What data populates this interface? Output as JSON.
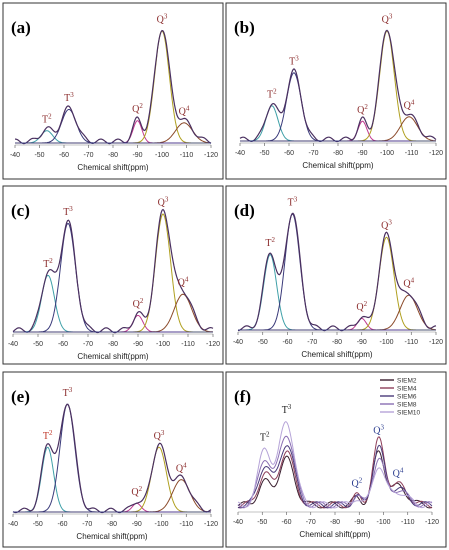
{
  "figure": {
    "x_axis_label": "Chemical shift(ppm)",
    "x_ticks": [
      -40,
      -50,
      -60,
      -70,
      -80,
      -90,
      -100,
      -110,
      -120
    ]
  },
  "chart_data": [
    {
      "type": "line",
      "panel_label": "(a)",
      "xlabel": "Chemical shift(ppm)",
      "xlim": [
        -40,
        -120
      ],
      "peaks": [
        {
          "label": "T",
          "sup": "2",
          "label_color": "#8b2d2d",
          "center": -53,
          "height": 0.11,
          "width": 2.4
        },
        {
          "label": "T",
          "sup": "3",
          "label_color": "#8b2d2d",
          "center": -62,
          "height": 0.3,
          "width": 3.0
        },
        {
          "label": "Q",
          "sup": "2",
          "label_color": "#8b2d2d",
          "center": -90,
          "height": 0.2,
          "width": 1.8
        },
        {
          "label": "Q",
          "sup": "3",
          "label_color": "#8b2d2d",
          "center": -100,
          "height": 1.0,
          "width": 3.0
        },
        {
          "label": "Q",
          "sup": "4",
          "label_color": "#8b2d2d",
          "center": -109,
          "height": 0.18,
          "width": 3.5
        }
      ]
    },
    {
      "type": "line",
      "panel_label": "(b)",
      "xlabel": "Chemical shift(ppm)",
      "xlim": [
        -40,
        -120
      ],
      "peaks": [
        {
          "label": "T",
          "sup": "2",
          "label_color": "#8b2d2d",
          "center": -53,
          "height": 0.32,
          "width": 2.5
        },
        {
          "label": "T",
          "sup": "3",
          "label_color": "#8b2d2d",
          "center": -62,
          "height": 0.62,
          "width": 3.0
        },
        {
          "label": "Q",
          "sup": "2",
          "label_color": "#8b2d2d",
          "center": -90,
          "height": 0.18,
          "width": 1.8
        },
        {
          "label": "Q",
          "sup": "3",
          "label_color": "#8b2d2d",
          "center": -100,
          "height": 1.0,
          "width": 3.0
        },
        {
          "label": "Q",
          "sup": "4",
          "label_color": "#8b2d2d",
          "center": -109,
          "height": 0.22,
          "width": 3.5
        }
      ]
    },
    {
      "type": "line",
      "panel_label": "(c)",
      "xlabel": "Chemical shift(ppm)",
      "xlim": [
        -40,
        -120
      ],
      "peaks": [
        {
          "label": "T",
          "sup": "2",
          "label_color": "#8b2d2d",
          "center": -54,
          "height": 0.48,
          "width": 2.6
        },
        {
          "label": "T",
          "sup": "3",
          "label_color": "#8b2d2d",
          "center": -62,
          "height": 0.92,
          "width": 3.0
        },
        {
          "label": "Q",
          "sup": "2",
          "label_color": "#8b2d2d",
          "center": -90,
          "height": 0.14,
          "width": 2.0
        },
        {
          "label": "Q",
          "sup": "3",
          "label_color": "#8b2d2d",
          "center": -100,
          "height": 1.0,
          "width": 3.0
        },
        {
          "label": "Q",
          "sup": "4",
          "label_color": "#8b2d2d",
          "center": -108,
          "height": 0.32,
          "width": 3.5
        }
      ]
    },
    {
      "type": "line",
      "panel_label": "(d)",
      "xlabel": "Chemical shift(ppm)",
      "xlim": [
        -40,
        -120
      ],
      "peaks": [
        {
          "label": "T",
          "sup": "2",
          "label_color": "#8b2d2d",
          "center": -53,
          "height": 0.65,
          "width": 2.6
        },
        {
          "label": "T",
          "sup": "3",
          "label_color": "#8b2d2d",
          "center": -62,
          "height": 1.0,
          "width": 3.0
        },
        {
          "label": "Q",
          "sup": "2",
          "label_color": "#8b2d2d",
          "center": -90,
          "height": 0.1,
          "width": 1.8
        },
        {
          "label": "Q",
          "sup": "3",
          "label_color": "#8b2d2d",
          "center": -100,
          "height": 0.8,
          "width": 3.0
        },
        {
          "label": "Q",
          "sup": "4",
          "label_color": "#8b2d2d",
          "center": -109,
          "height": 0.3,
          "width": 3.5
        }
      ]
    },
    {
      "type": "line",
      "panel_label": "(e)",
      "xlabel": "Chemical shift(ppm)",
      "xlim": [
        -40,
        -120
      ],
      "peaks": [
        {
          "label": "T",
          "sup": "2",
          "label_color": "#c0392b",
          "center": -54,
          "height": 0.6,
          "width": 2.4
        },
        {
          "label": "T",
          "sup": "3",
          "label_color": "#8b2d2d",
          "center": -62,
          "height": 1.0,
          "width": 3.0
        },
        {
          "label": "Q",
          "sup": "2",
          "label_color": "#8b2d2d",
          "center": -90,
          "height": 0.08,
          "width": 1.8
        },
        {
          "label": "Q",
          "sup": "3",
          "label_color": "#8b2d2d",
          "center": -99,
          "height": 0.6,
          "width": 3.0
        },
        {
          "label": "Q",
          "sup": "4",
          "label_color": "#8b2d2d",
          "center": -108,
          "height": 0.3,
          "width": 3.5
        }
      ]
    },
    {
      "type": "line",
      "panel_label": "(f)",
      "xlabel": "Chemical shift(ppm)",
      "xlim": [
        -40,
        -120
      ],
      "peak_labels": [
        {
          "label": "T",
          "sup": "2",
          "label_color": "#222222",
          "center": -51
        },
        {
          "label": "T",
          "sup": "3",
          "label_color": "#222222",
          "center": -60
        },
        {
          "label": "Q",
          "sup": "2",
          "label_color": "#2c3e8f",
          "center": -89
        },
        {
          "label": "Q",
          "sup": "3",
          "label_color": "#2c3e8f",
          "center": -98
        },
        {
          "label": "Q",
          "sup": "4",
          "label_color": "#2c3e8f",
          "center": -106
        }
      ],
      "series": [
        {
          "name": "SIEM2",
          "color": "#3a1f2f",
          "peak_heights": [
            0.22,
            0.45,
            0.07,
            0.5,
            0.18
          ]
        },
        {
          "name": "SIEM4",
          "color": "#8e3f5a",
          "peak_heights": [
            0.3,
            0.52,
            0.09,
            0.62,
            0.2
          ]
        },
        {
          "name": "SIEM6",
          "color": "#4a3a7a",
          "peak_heights": [
            0.38,
            0.6,
            0.08,
            0.55,
            0.16
          ]
        },
        {
          "name": "SIEM8",
          "color": "#8a6fb3",
          "peak_heights": [
            0.45,
            0.7,
            0.1,
            0.45,
            0.15
          ]
        },
        {
          "name": "SIEM10",
          "color": "#b6a4d8",
          "peak_heights": [
            0.55,
            0.82,
            0.07,
            0.38,
            0.13
          ]
        }
      ]
    }
  ]
}
